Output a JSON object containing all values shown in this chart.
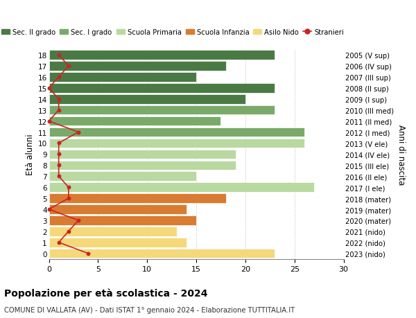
{
  "ages": [
    18,
    17,
    16,
    15,
    14,
    13,
    12,
    11,
    10,
    9,
    8,
    7,
    6,
    5,
    4,
    3,
    2,
    1,
    0
  ],
  "labels_right": [
    "2005 (V sup)",
    "2006 (IV sup)",
    "2007 (III sup)",
    "2008 (II sup)",
    "2009 (I sup)",
    "2010 (III med)",
    "2011 (II med)",
    "2012 (I med)",
    "2013 (V ele)",
    "2014 (IV ele)",
    "2015 (III ele)",
    "2016 (II ele)",
    "2017 (I ele)",
    "2018 (mater)",
    "2019 (mater)",
    "2020 (mater)",
    "2021 (nido)",
    "2022 (nido)",
    "2023 (nido)"
  ],
  "bar_values": [
    23,
    18,
    15,
    23,
    20,
    23,
    17.5,
    26,
    26,
    19,
    19,
    15,
    27,
    18,
    14,
    15,
    13,
    14,
    23
  ],
  "bar_colors": [
    "#4a7a44",
    "#4a7a44",
    "#4a7a44",
    "#4a7a44",
    "#4a7a44",
    "#7aaa6a",
    "#7aaa6a",
    "#7aaa6a",
    "#b8d9a0",
    "#b8d9a0",
    "#b8d9a0",
    "#b8d9a0",
    "#b8d9a0",
    "#d97b30",
    "#d97b30",
    "#d97b30",
    "#f5d87a",
    "#f5d87a",
    "#f5d87a"
  ],
  "stranieri_values": [
    1,
    2,
    1,
    0,
    1,
    1,
    0,
    3,
    1,
    1,
    1,
    1,
    2,
    2,
    0,
    3,
    2,
    1,
    4
  ],
  "legend_labels": [
    "Sec. II grado",
    "Sec. I grado",
    "Scuola Primaria",
    "Scuola Infanzia",
    "Asilo Nido",
    "Stranieri"
  ],
  "legend_colors": [
    "#4a7a44",
    "#7aaa6a",
    "#b8d9a0",
    "#d97b30",
    "#f5d87a",
    "#cc2222"
  ],
  "ylabel": "Età alunni",
  "ylabel_right": "Anni di nascita",
  "title": "Popolazione per età scolastica - 2024",
  "subtitle": "COMUNE DI VALLATA (AV) - Dati ISTAT 1° gennaio 2024 - Elaborazione TUTTITALIA.IT",
  "xlim": [
    0,
    30
  ],
  "xticks": [
    0,
    5,
    10,
    15,
    20,
    25,
    30
  ],
  "background_color": "#ffffff",
  "grid_color": "#cccccc"
}
